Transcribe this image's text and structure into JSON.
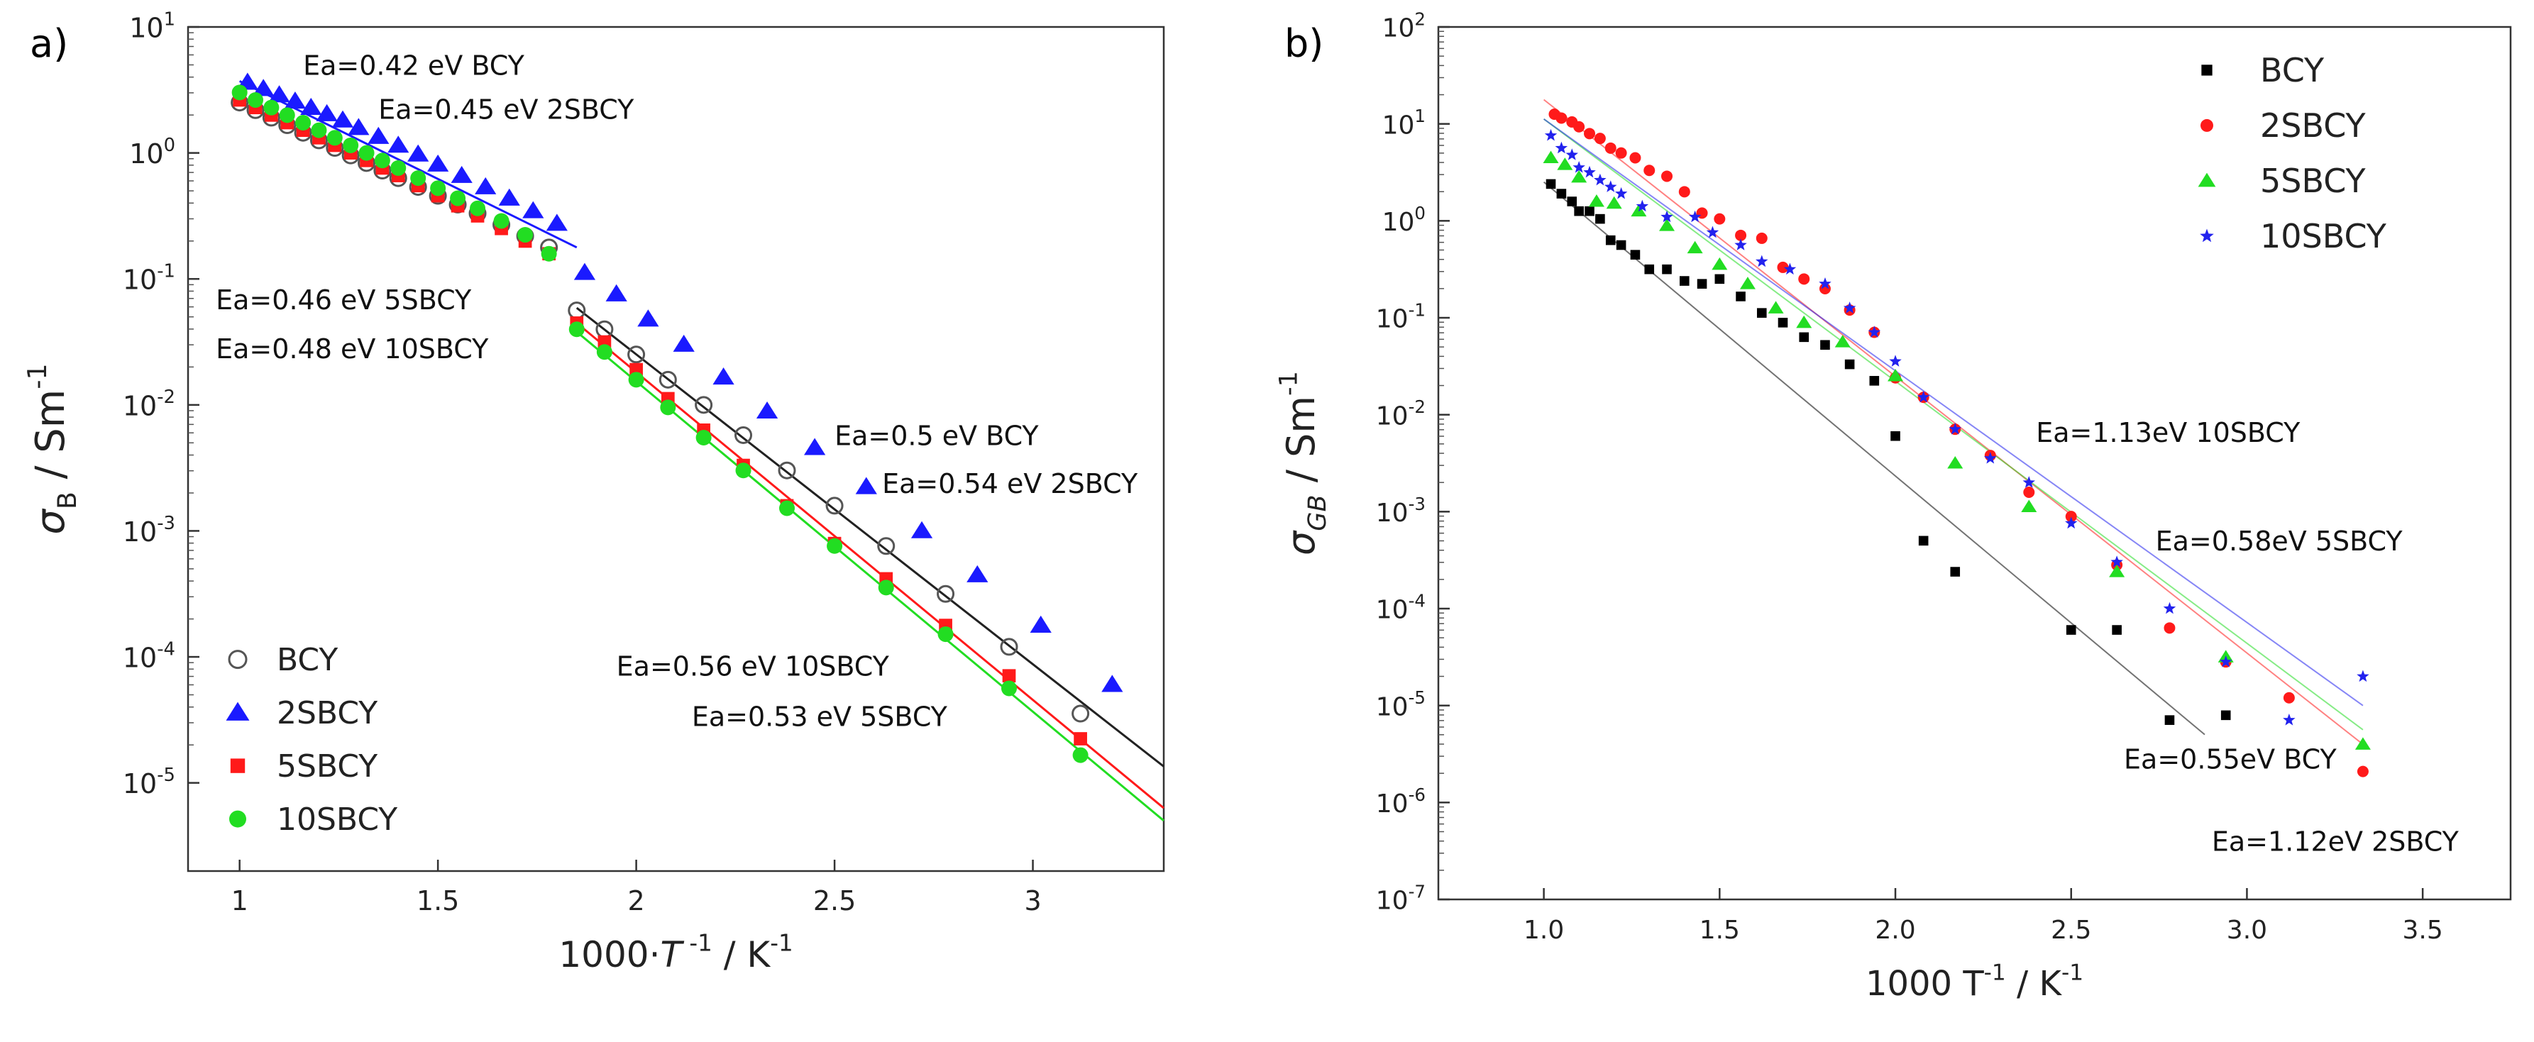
{
  "chart_data": [
    {
      "panel_label": "a)",
      "type": "scatter",
      "yscale": "log",
      "xlim": [
        0.87,
        3.33
      ],
      "ylim": [
        -5.7,
        1.0
      ],
      "xticks": [
        1,
        1.5,
        2,
        2.5,
        3
      ],
      "xtick_labels": [
        "1",
        "1.5",
        "2",
        "2.5",
        "3"
      ],
      "ytick_exponents": [
        -5,
        -4,
        -3,
        -2,
        -1,
        0,
        1
      ],
      "xlabel": {
        "main": "1000·",
        "var": "T",
        "sup": " -1",
        "unit": " / K",
        "unit_sup": "-1"
      },
      "ylabel": {
        "main": "σ",
        "sub": "B",
        "unit": " / Sm",
        "unit_sup": "-1"
      },
      "legend_position": "bottom-left",
      "series": [
        {
          "name": "BCY",
          "color": "#555555",
          "marker": "open-circle",
          "x": [
            1.0,
            1.04,
            1.08,
            1.12,
            1.16,
            1.2,
            1.24,
            1.28,
            1.32,
            1.36,
            1.4,
            1.45,
            1.5,
            1.55,
            1.6,
            1.66,
            1.72,
            1.78,
            1.85,
            1.92,
            2.0,
            2.08,
            2.17,
            2.27,
            2.38,
            2.5,
            2.63,
            2.78,
            2.94,
            3.12
          ],
          "log10_y": [
            0.4,
            0.34,
            0.28,
            0.22,
            0.16,
            0.1,
            0.04,
            -0.02,
            -0.08,
            -0.14,
            -0.2,
            -0.27,
            -0.34,
            -0.41,
            -0.48,
            -0.57,
            -0.66,
            -0.75,
            -1.25,
            -1.4,
            -1.6,
            -1.8,
            -2.0,
            -2.24,
            -2.52,
            -2.8,
            -3.12,
            -3.5,
            -3.92,
            -4.45
          ],
          "fit": {
            "x": [
              1.85,
              3.33
            ],
            "log10_y": [
              -1.23,
              -4.87
            ]
          }
        },
        {
          "name": "2SBCY",
          "color": "#1a1aff",
          "marker": "filled-triangle",
          "x": [
            1.02,
            1.06,
            1.1,
            1.14,
            1.18,
            1.22,
            1.26,
            1.3,
            1.35,
            1.4,
            1.45,
            1.5,
            1.56,
            1.62,
            1.68,
            1.74,
            1.8,
            1.87,
            1.95,
            2.03,
            2.12,
            2.22,
            2.33,
            2.45,
            2.58,
            2.72,
            2.86,
            3.02,
            3.2
          ],
          "log10_y": [
            0.56,
            0.51,
            0.46,
            0.41,
            0.36,
            0.31,
            0.26,
            0.2,
            0.13,
            0.06,
            -0.01,
            -0.09,
            -0.18,
            -0.27,
            -0.36,
            -0.46,
            -0.56,
            -0.95,
            -1.12,
            -1.32,
            -1.52,
            -1.78,
            -2.05,
            -2.34,
            -2.65,
            -3.0,
            -3.35,
            -3.75,
            -4.22
          ],
          "fit": {
            "x": [
              1.0,
              1.85
            ],
            "log10_y": [
              0.57,
              -0.75
            ]
          }
        },
        {
          "name": "5SBCY",
          "color": "#ff1a1a",
          "marker": "filled-square",
          "x": [
            1.0,
            1.04,
            1.08,
            1.12,
            1.16,
            1.2,
            1.24,
            1.28,
            1.32,
            1.36,
            1.4,
            1.45,
            1.5,
            1.55,
            1.6,
            1.66,
            1.72,
            1.78,
            1.85,
            1.92,
            2.0,
            2.08,
            2.17,
            2.27,
            2.38,
            2.5,
            2.63,
            2.78,
            2.94,
            3.12
          ],
          "log10_y": [
            0.42,
            0.36,
            0.3,
            0.24,
            0.18,
            0.12,
            0.06,
            0.0,
            -0.06,
            -0.12,
            -0.18,
            -0.26,
            -0.34,
            -0.42,
            -0.5,
            -0.6,
            -0.7,
            -0.8,
            -1.35,
            -1.5,
            -1.72,
            -1.95,
            -2.2,
            -2.48,
            -2.8,
            -3.1,
            -3.38,
            -3.75,
            -4.15,
            -4.65
          ],
          "fit": {
            "x": [
              1.85,
              3.33
            ],
            "log10_y": [
              -1.35,
              -5.2
            ]
          }
        },
        {
          "name": "10SBCY",
          "color": "#22dd22",
          "marker": "filled-circle",
          "x": [
            1.0,
            1.04,
            1.08,
            1.12,
            1.16,
            1.2,
            1.24,
            1.28,
            1.32,
            1.36,
            1.4,
            1.45,
            1.5,
            1.55,
            1.6,
            1.66,
            1.72,
            1.78,
            1.85,
            1.92,
            2.0,
            2.08,
            2.17,
            2.27,
            2.38,
            2.5,
            2.63,
            2.78,
            2.94,
            3.12
          ],
          "log10_y": [
            0.48,
            0.42,
            0.36,
            0.3,
            0.24,
            0.18,
            0.12,
            0.06,
            0.0,
            -0.06,
            -0.12,
            -0.2,
            -0.28,
            -0.36,
            -0.44,
            -0.54,
            -0.65,
            -0.8,
            -1.4,
            -1.58,
            -1.8,
            -2.02,
            -2.26,
            -2.52,
            -2.82,
            -3.12,
            -3.45,
            -3.82,
            -4.25,
            -4.78
          ],
          "fit": {
            "x": [
              1.85,
              3.33
            ],
            "log10_y": [
              -1.42,
              -5.3
            ]
          }
        }
      ],
      "annotations": [
        {
          "text": "Ea=0.42 eV BCY",
          "x": 1.16,
          "log10_y": 0.62
        },
        {
          "text": "Ea=0.45 eV    2SBCY",
          "x": 1.35,
          "log10_y": 0.27
        },
        {
          "text": "Ea=0.46 eV 5SBCY",
          "x": 0.94,
          "log10_y": -1.24
        },
        {
          "text": "Ea=0.48 eV 10SBCY",
          "x": 0.94,
          "log10_y": -1.63
        },
        {
          "text": "Ea=0.5 eV BCY",
          "x": 2.5,
          "log10_y": -2.32
        },
        {
          "text": "Ea=0.54 eV 2SBCY",
          "x": 2.62,
          "log10_y": -2.7
        },
        {
          "text": "Ea=0.56 eV 10SBCY",
          "x": 1.95,
          "log10_y": -4.15
        },
        {
          "text": "Ea=0.53 eV 5SBCY",
          "x": 2.14,
          "log10_y": -4.55
        }
      ]
    },
    {
      "panel_label": "b)",
      "type": "scatter",
      "yscale": "log",
      "xlim": [
        0.7,
        3.75
      ],
      "ylim": [
        -7.0,
        2.0
      ],
      "xticks": [
        1.0,
        1.5,
        2.0,
        2.5,
        3.0,
        3.5
      ],
      "xtick_labels": [
        "1.0",
        "1.5",
        "2.0",
        "2.5",
        "3.0",
        "3.5"
      ],
      "ytick_exponents": [
        -7,
        -6,
        -5,
        -4,
        -3,
        -2,
        -1,
        0,
        1,
        2
      ],
      "xlabel": {
        "main": "1000 T",
        "sup": "-1",
        "unit": "  / K",
        "unit_sup": "-1"
      },
      "ylabel": {
        "main": "σ",
        "sub": "GB",
        "unit": " / Sm",
        "unit_sup": "-1"
      },
      "legend_position": "top-right",
      "series": [
        {
          "name": "BCY",
          "color": "#000000",
          "marker": "filled-square",
          "x": [
            1.02,
            1.05,
            1.08,
            1.1,
            1.13,
            1.16,
            1.19,
            1.22,
            1.26,
            1.3,
            1.35,
            1.4,
            1.45,
            1.5,
            1.56,
            1.62,
            1.68,
            1.74,
            1.8,
            1.87,
            1.94,
            2.0,
            2.08,
            2.17,
            2.5,
            2.63,
            2.78,
            2.94
          ],
          "log10_y": [
            0.38,
            0.28,
            0.2,
            0.1,
            0.1,
            0.02,
            -0.2,
            -0.25,
            -0.35,
            -0.5,
            -0.5,
            -0.62,
            -0.65,
            -0.6,
            -0.78,
            -0.95,
            -1.05,
            -1.2,
            -1.28,
            -1.48,
            -1.65,
            -2.22,
            -3.3,
            -3.62,
            -4.22,
            -4.22,
            -5.15,
            -5.1
          ],
          "fit": {
            "x": [
              1.0,
              2.88
            ],
            "log10_y": [
              0.4,
              -5.3
            ]
          }
        },
        {
          "name": "2SBCY",
          "color": "#ff1a1a",
          "marker": "filled-circle",
          "x": [
            1.03,
            1.05,
            1.08,
            1.1,
            1.13,
            1.16,
            1.19,
            1.22,
            1.26,
            1.3,
            1.35,
            1.4,
            1.45,
            1.5,
            1.56,
            1.62,
            1.68,
            1.74,
            1.8,
            1.87,
            1.94,
            2.0,
            2.08,
            2.17,
            2.27,
            2.38,
            2.5,
            2.63,
            2.78,
            2.94,
            3.12,
            3.33
          ],
          "log10_y": [
            1.1,
            1.06,
            1.02,
            0.97,
            0.9,
            0.85,
            0.75,
            0.7,
            0.65,
            0.52,
            0.46,
            0.3,
            0.08,
            0.02,
            -0.15,
            -0.18,
            -0.48,
            -0.6,
            -0.7,
            -0.92,
            -1.15,
            -1.62,
            -1.82,
            -2.15,
            -2.42,
            -2.8,
            -3.05,
            -3.55,
            -4.2,
            -4.55,
            -4.92,
            -5.68
          ],
          "fit": {
            "x": [
              1.0,
              3.33
            ],
            "log10_y": [
              1.25,
              -5.4
            ]
          }
        },
        {
          "name": "5SBCY",
          "color": "#22dd22",
          "marker": "filled-triangle",
          "x": [
            1.02,
            1.06,
            1.1,
            1.15,
            1.2,
            1.27,
            1.35,
            1.43,
            1.5,
            1.58,
            1.66,
            1.74,
            1.85,
            2.0,
            2.17,
            2.38,
            2.63,
            2.94,
            3.33
          ],
          "log10_y": [
            0.65,
            0.58,
            0.45,
            0.2,
            0.18,
            0.1,
            -0.05,
            -0.28,
            -0.45,
            -0.65,
            -0.9,
            -1.05,
            -1.25,
            -1.6,
            -2.5,
            -2.95,
            -3.62,
            -4.5,
            -5.4
          ],
          "fit": {
            "x": [
              1.0,
              3.33
            ],
            "log10_y": [
              1.05,
              -5.25
            ]
          }
        },
        {
          "name": "10SBCY",
          "color": "#2222ee",
          "marker": "star",
          "x": [
            1.02,
            1.05,
            1.08,
            1.1,
            1.13,
            1.16,
            1.19,
            1.22,
            1.28,
            1.35,
            1.43,
            1.48,
            1.56,
            1.62,
            1.7,
            1.8,
            1.87,
            1.94,
            2.0,
            2.08,
            2.17,
            2.27,
            2.38,
            2.5,
            2.63,
            2.78,
            2.94,
            3.12,
            3.33
          ],
          "log10_y": [
            0.88,
            0.75,
            0.68,
            0.55,
            0.5,
            0.42,
            0.35,
            0.28,
            0.15,
            0.04,
            0.04,
            -0.12,
            -0.25,
            -0.42,
            -0.5,
            -0.65,
            -0.9,
            -1.15,
            -1.45,
            -1.82,
            -2.15,
            -2.45,
            -2.7,
            -3.12,
            -3.52,
            -4.0,
            -4.55,
            -5.15,
            -4.7
          ],
          "fit": {
            "x": [
              1.0,
              3.33
            ],
            "log10_y": [
              1.05,
              -5.0
            ]
          }
        }
      ],
      "annotations": [
        {
          "text": "Ea=1.13eV 10SBCY",
          "x": 2.4,
          "log10_y": -2.28
        },
        {
          "text": "Ea=0.58eV 5SBCY",
          "x": 2.74,
          "log10_y": -3.4
        },
        {
          "text": "Ea=0.55eV BCY",
          "x": 2.65,
          "log10_y": -5.65
        },
        {
          "text": "Ea=1.12eV 2SBCY",
          "x": 2.9,
          "log10_y": -6.5
        }
      ]
    }
  ]
}
